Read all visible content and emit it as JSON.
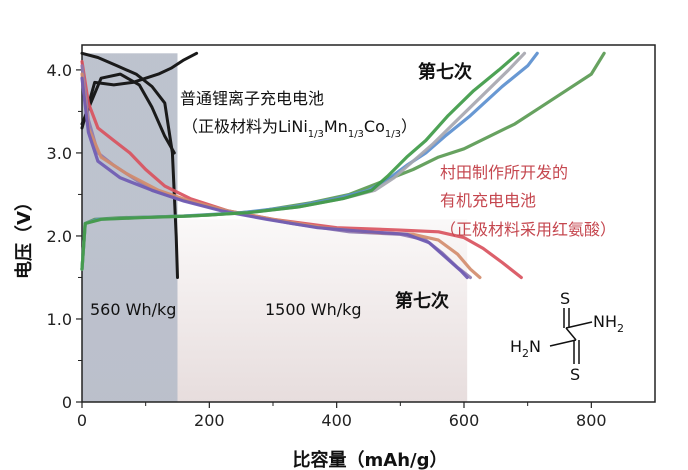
{
  "chart_data": {
    "type": "line",
    "title": "",
    "xlabel": "比容量（mAh/g）",
    "ylabel": "电压（V）",
    "xlim": [
      0,
      900
    ],
    "ylim": [
      0,
      4.3
    ],
    "xticks": [
      "0",
      "200",
      "400",
      "600",
      "800"
    ],
    "yticks": [
      "0",
      "1.0",
      "2.0",
      "3.0",
      "4.0"
    ],
    "grid": false,
    "shaded_regions": [
      {
        "label": "560 Wh/kg",
        "x_range": [
          0,
          150
        ],
        "color": "#b6bcc9"
      },
      {
        "label": "1500 Wh/kg",
        "x_range": [
          0,
          605
        ],
        "color": "#e7dddd"
      }
    ],
    "annotations": {
      "li_battery": "普通锂离子充电电池",
      "li_cathode_prefix": "（正极材料为LiNi",
      "li_frac": "1/3",
      "li_mn": "Mn",
      "li_co": "Co",
      "li_close": "）",
      "organic_line1": "村田制作所开发的",
      "organic_line2": "有机充电电池",
      "organic_line3": "（正极材料采用红氨酸）",
      "seventh_top": "第七次",
      "seventh_bottom": "第七次",
      "chem_s_top": "S",
      "chem_s_bottom": "S",
      "chem_nh2_right": "NH",
      "chem_nh2_left": "H",
      "chem_n_left": "N",
      "chem_sub2": "2"
    },
    "series": [
      {
        "role": "li-ion-discharge",
        "color": "#1a1a1a",
        "x": [
          0,
          25,
          55,
          85,
          110,
          130,
          142,
          148,
          150
        ],
        "y": [
          4.2,
          4.15,
          4.05,
          3.95,
          3.8,
          3.6,
          3.0,
          2.0,
          1.5
        ]
      },
      {
        "role": "li-ion-charge",
        "color": "#1a1a1a",
        "x": [
          0,
          20,
          50,
          80,
          100,
          120,
          140,
          160,
          180
        ],
        "y": [
          3.3,
          3.85,
          3.82,
          3.85,
          3.9,
          3.95,
          4.02,
          4.12,
          4.2
        ]
      },
      {
        "role": "li-ion-arc",
        "color": "#1a1a1a",
        "x": [
          0,
          30,
          60,
          90,
          110,
          130,
          145
        ],
        "y": [
          3.35,
          3.9,
          3.95,
          3.82,
          3.55,
          3.2,
          3.0
        ]
      },
      {
        "role": "discharge-1st",
        "color": "#d9535e",
        "x": [
          0,
          10,
          25,
          50,
          75,
          100,
          130,
          170,
          230,
          300,
          400,
          500,
          560,
          600,
          630,
          660,
          690
        ],
        "y": [
          4.1,
          3.6,
          3.3,
          3.15,
          3.0,
          2.8,
          2.6,
          2.45,
          2.3,
          2.2,
          2.1,
          2.07,
          2.05,
          1.98,
          1.85,
          1.68,
          1.5
        ]
      },
      {
        "role": "discharge-2nd",
        "color": "#8e7ab0",
        "x": [
          0,
          10,
          25,
          50,
          80,
          110,
          150,
          200,
          260,
          330,
          420,
          500,
          540,
          565,
          590,
          610
        ],
        "y": [
          4.05,
          3.4,
          3.0,
          2.85,
          2.7,
          2.55,
          2.45,
          2.35,
          2.25,
          2.15,
          2.05,
          2.02,
          1.95,
          1.8,
          1.62,
          1.5
        ]
      },
      {
        "role": "discharge-mid",
        "color": "#d38c6c",
        "x": [
          0,
          10,
          30,
          70,
          120,
          170,
          230,
          300,
          380,
          460,
          520,
          560,
          590,
          610,
          625
        ],
        "y": [
          3.95,
          3.3,
          2.95,
          2.75,
          2.55,
          2.42,
          2.3,
          2.2,
          2.1,
          2.04,
          2.02,
          1.95,
          1.78,
          1.6,
          1.5
        ]
      },
      {
        "role": "discharge-7th",
        "color": "#6f5bb3",
        "x": [
          0,
          10,
          25,
          60,
          110,
          160,
          220,
          290,
          370,
          450,
          510,
          545,
          570,
          595,
          605
        ],
        "y": [
          3.9,
          3.25,
          2.9,
          2.7,
          2.55,
          2.42,
          2.3,
          2.2,
          2.1,
          2.05,
          2.02,
          1.92,
          1.75,
          1.58,
          1.5
        ]
      },
      {
        "role": "charge-1st",
        "color": "#5a9a52",
        "x": [
          0,
          5,
          20,
          60,
          120,
          200,
          280,
          360,
          420,
          470,
          520,
          560,
          600,
          640,
          680,
          720,
          760,
          800,
          820
        ],
        "y": [
          1.6,
          2.15,
          2.2,
          2.22,
          2.23,
          2.25,
          2.3,
          2.4,
          2.5,
          2.65,
          2.8,
          2.95,
          3.05,
          3.2,
          3.35,
          3.55,
          3.75,
          3.95,
          4.2
        ]
      },
      {
        "role": "charge-2nd",
        "color": "#5b8fcf",
        "x": [
          0,
          5,
          25,
          80,
          160,
          250,
          330,
          400,
          450,
          480,
          510,
          540,
          570,
          610,
          660,
          700,
          715
        ],
        "y": [
          1.6,
          2.15,
          2.2,
          2.22,
          2.24,
          2.28,
          2.35,
          2.45,
          2.55,
          2.68,
          2.85,
          3.0,
          3.2,
          3.45,
          3.8,
          4.05,
          4.2
        ]
      },
      {
        "role": "charge-mid",
        "color": "#a7a7b0",
        "x": [
          0,
          5,
          30,
          90,
          170,
          260,
          340,
          410,
          460,
          490,
          520,
          550,
          590,
          630,
          670,
          695
        ],
        "y": [
          1.6,
          2.15,
          2.2,
          2.22,
          2.24,
          2.28,
          2.35,
          2.45,
          2.55,
          2.7,
          2.9,
          3.1,
          3.4,
          3.7,
          4.0,
          4.2
        ]
      },
      {
        "role": "charge-7th",
        "color": "#3e9a47",
        "x": [
          0,
          5,
          30,
          90,
          170,
          260,
          340,
          410,
          455,
          480,
          510,
          540,
          575,
          615,
          655,
          685
        ],
        "y": [
          1.6,
          2.15,
          2.2,
          2.22,
          2.24,
          2.28,
          2.35,
          2.45,
          2.55,
          2.72,
          2.95,
          3.15,
          3.45,
          3.75,
          4.0,
          4.2
        ]
      }
    ]
  }
}
